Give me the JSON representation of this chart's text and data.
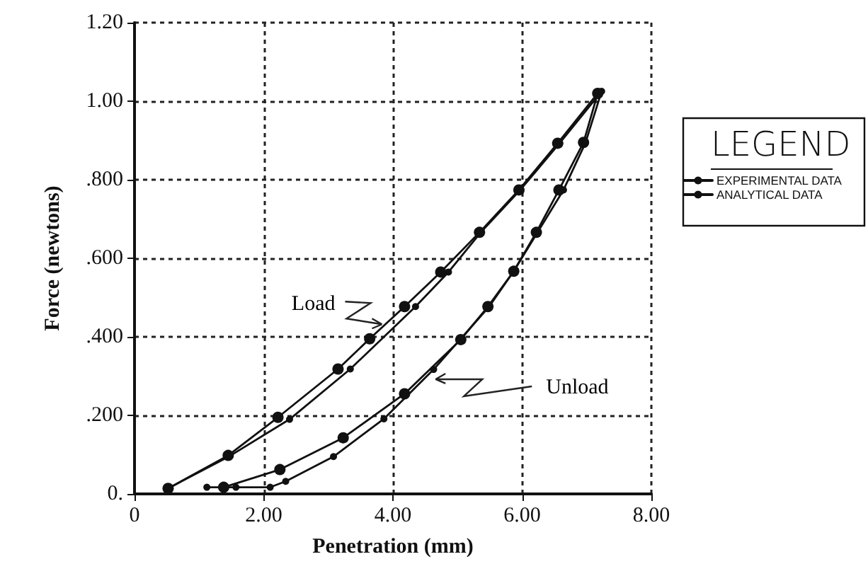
{
  "chart_data": {
    "type": "line",
    "xlabel": "Penetration (mm)",
    "ylabel": "Force (newtons)",
    "legend_title": "LEGEND",
    "series": [
      {
        "name": "EXPERIMENTAL DATA",
        "color": "#111111",
        "marker": "circle",
        "x": [
          0.52,
          1.45,
          2.22,
          3.15,
          3.64,
          4.18,
          4.74,
          5.34,
          5.95,
          6.55,
          7.17,
          6.95,
          6.57,
          6.22,
          5.87,
          5.47,
          5.05,
          4.18,
          3.23,
          2.25,
          1.38
        ],
        "values": [
          0.014,
          0.098,
          0.195,
          0.318,
          0.395,
          0.477,
          0.565,
          0.666,
          0.774,
          0.893,
          1.02,
          0.895,
          0.774,
          0.666,
          0.567,
          0.477,
          0.393,
          0.255,
          0.143,
          0.062,
          0.017
        ]
      },
      {
        "name": "ANALYTICAL DATA",
        "color": "#111111",
        "marker": "circle",
        "x": [
          0.52,
          1.48,
          2.4,
          3.34,
          4.35,
          4.86,
          5.36,
          5.97,
          6.58,
          7.23,
          6.98,
          6.64,
          5.87,
          5.49,
          4.63,
          3.86,
          3.08,
          2.34,
          2.1,
          1.57,
          1.12
        ],
        "values": [
          0.014,
          0.097,
          0.19,
          0.318,
          0.477,
          0.565,
          0.666,
          0.774,
          0.893,
          1.025,
          0.894,
          0.774,
          0.567,
          0.477,
          0.317,
          0.191,
          0.095,
          0.032,
          0.017,
          0.017,
          0.017
        ]
      }
    ],
    "xlim": [
      0,
      8
    ],
    "xticks": [
      {
        "value": 0,
        "label": "0"
      },
      {
        "value": 2,
        "label": "2.00"
      },
      {
        "value": 4,
        "label": "4.00"
      },
      {
        "value": 6,
        "label": "6.00"
      },
      {
        "value": 8,
        "label": "8.00"
      }
    ],
    "ylim": [
      0,
      1.2
    ],
    "yticks": [
      {
        "value": 0,
        "label": "0."
      },
      {
        "value": 0.2,
        "label": ".200"
      },
      {
        "value": 0.4,
        "label": ".400"
      },
      {
        "value": 0.6,
        "label": ".600"
      },
      {
        "value": 0.8,
        "label": ".800"
      },
      {
        "value": 1.0,
        "label": "1.00"
      },
      {
        "value": 1.2,
        "label": "1.20"
      }
    ],
    "grid": true,
    "legend": "right",
    "line_style": "solid",
    "annotations": [
      {
        "text": "Load",
        "x": 3.83,
        "y": 0.432
      },
      {
        "text": "Unload",
        "x": 4.66,
        "y": 0.292
      }
    ]
  }
}
